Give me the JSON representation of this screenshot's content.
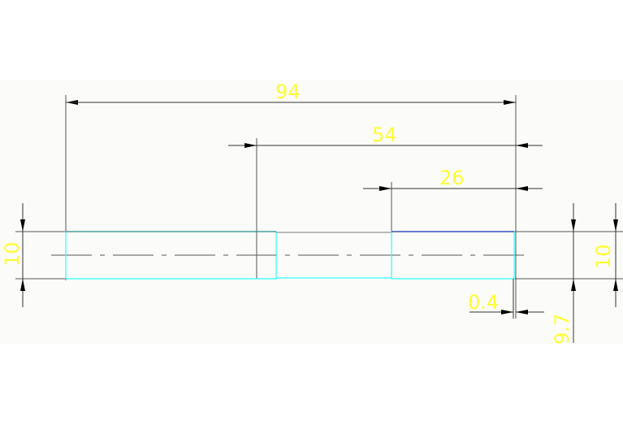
{
  "drawing": {
    "background": "#fbfcf9",
    "colors": {
      "dimension_text": "#ffff33",
      "dimension_lines": "#555555",
      "shaft_outline": "#33ffff",
      "highlight_edge": "#3b2cb0"
    },
    "dimensions": {
      "overall_length": "94",
      "step_length": "54",
      "end_length": "26",
      "left_diameter": "10",
      "right_diameter": "10",
      "reduced_diameter": "9.7",
      "offset": "0.4"
    }
  }
}
